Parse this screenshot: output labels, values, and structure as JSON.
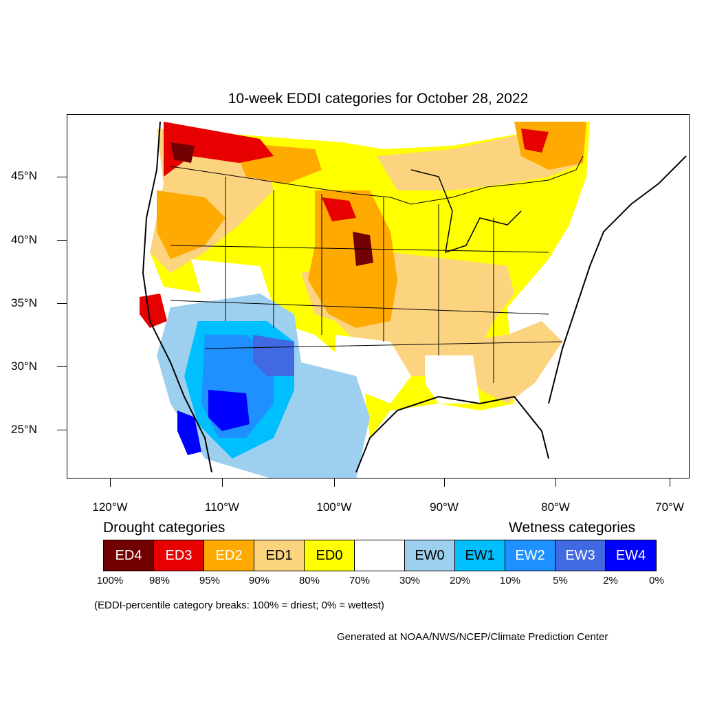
{
  "title": "10-week EDDI categories for October 28, 2022",
  "map": {
    "lat_labels": [
      "45°N",
      "40°N",
      "35°N",
      "30°N",
      "25°N"
    ],
    "lon_labels": [
      "120°W",
      "110°W",
      "100°W",
      "90°W",
      "80°W",
      "70°W"
    ]
  },
  "legend": {
    "drought_heading": "Drought categories",
    "wetness_heading": "Wetness categories",
    "categories": [
      {
        "label": "ED4",
        "color": "#730000",
        "text_color": "#ffffff"
      },
      {
        "label": "ED3",
        "color": "#e60000",
        "text_color": "#ffffff"
      },
      {
        "label": "ED2",
        "color": "#ffaa00",
        "text_color": "#ffffff"
      },
      {
        "label": "ED1",
        "color": "#fcd37f",
        "text_color": "#000000"
      },
      {
        "label": "ED0",
        "color": "#ffff00",
        "text_color": "#000000"
      },
      {
        "label": "",
        "color": "#ffffff",
        "text_color": "#000000"
      },
      {
        "label": "EW0",
        "color": "#9dcfef",
        "text_color": "#000000"
      },
      {
        "label": "EW1",
        "color": "#00bfff",
        "text_color": "#000000"
      },
      {
        "label": "EW2",
        "color": "#1e90ff",
        "text_color": "#ffffff"
      },
      {
        "label": "EW3",
        "color": "#4169e1",
        "text_color": "#ffffff"
      },
      {
        "label": "EW4",
        "color": "#0000ff",
        "text_color": "#ffffff"
      }
    ],
    "breaks": [
      "100%",
      "98%",
      "95%",
      "90%",
      "80%",
      "70%",
      "30%",
      "20%",
      "10%",
      "5%",
      "2%",
      "0%"
    ]
  },
  "note": "(EDDI-percentile category breaks: 100% = driest; 0% = wettest)",
  "credit": "Generated at NOAA/NWS/NCEP/Climate Prediction Center"
}
